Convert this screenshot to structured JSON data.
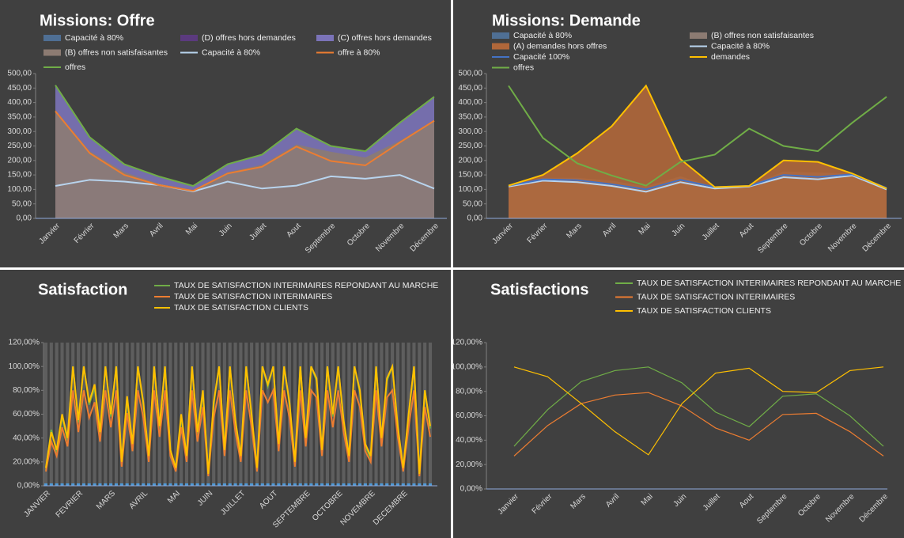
{
  "chart_data": [
    {
      "type": "combo",
      "title": "Missions: Offre",
      "categories": [
        "Janvier",
        "Février",
        "Mars",
        "Avril",
        "Mai",
        "Juin",
        "Juillet",
        "Aout",
        "Septembre",
        "Octobre",
        "Novembre",
        "Décembre"
      ],
      "ylim": [
        0,
        500
      ],
      "yticks": [
        {
          "value": 0,
          "label": "0,00"
        },
        {
          "value": 50,
          "label": "50,00"
        },
        {
          "value": 100,
          "label": "100,00"
        },
        {
          "value": 150,
          "label": "150,00"
        },
        {
          "value": 200,
          "label": "200,00"
        },
        {
          "value": 250,
          "label": "250,00"
        },
        {
          "value": 300,
          "label": "300,00"
        },
        {
          "value": 350,
          "label": "350,00"
        },
        {
          "value": 400,
          "label": "400,00"
        },
        {
          "value": 450,
          "label": "450,00"
        },
        {
          "value": 500,
          "label": "500,00"
        }
      ],
      "series": [
        {
          "name": "Capacité à 80%",
          "style": "area",
          "color": "#4f6f94",
          "values": [
            112,
            133,
            127,
            115,
            93,
            127,
            103,
            113,
            145,
            137,
            150,
            103
          ]
        },
        {
          "name": "(D) offres hors demandes",
          "style": "area",
          "color": "#5b3a7e",
          "values": [
            370,
            225,
            150,
            115,
            95,
            155,
            178,
            248,
            198,
            183,
            262,
            337
          ]
        },
        {
          "name": "(C) offres hors demandes",
          "style": "area",
          "color": "#7b73b8",
          "values": [
            460,
            280,
            187,
            145,
            112,
            187,
            220,
            310,
            250,
            232,
            330,
            420
          ]
        },
        {
          "name": "(B) offres non satisfaisantes",
          "style": "area",
          "color": "#8c7b72",
          "values": [
            375,
            232,
            160,
            120,
            98,
            160,
            185,
            255,
            230,
            210,
            268,
            340
          ]
        },
        {
          "name": "Capacité à 80%",
          "style": "line",
          "color": "#b8d4ee",
          "values": [
            112,
            133,
            127,
            115,
            93,
            127,
            103,
            113,
            145,
            137,
            150,
            103
          ]
        },
        {
          "name": "offre à 80%",
          "style": "line",
          "color": "#ed7d31",
          "values": [
            370,
            225,
            150,
            115,
            95,
            155,
            178,
            248,
            198,
            183,
            262,
            337
          ]
        },
        {
          "name": "offres",
          "style": "line",
          "color": "#70ad47",
          "values": [
            460,
            280,
            187,
            145,
            112,
            187,
            220,
            310,
            250,
            232,
            330,
            420
          ]
        }
      ]
    },
    {
      "type": "combo",
      "title": "Missions: Demande",
      "categories": [
        "Janvier",
        "Février",
        "Mars",
        "Avril",
        "Mai",
        "Juin",
        "Juillet",
        "Aout",
        "Septembre",
        "Octobre",
        "Novembre",
        "Décembre"
      ],
      "ylim": [
        0,
        500
      ],
      "yticks": [
        {
          "value": 0,
          "label": "0,00"
        },
        {
          "value": 50,
          "label": "50,00"
        },
        {
          "value": 100,
          "label": "100,00"
        },
        {
          "value": 150,
          "label": "150,00"
        },
        {
          "value": 200,
          "label": "200,00"
        },
        {
          "value": 250,
          "label": "250,00"
        },
        {
          "value": 300,
          "label": "300,00"
        },
        {
          "value": 350,
          "label": "350,00"
        },
        {
          "value": 400,
          "label": "400,00"
        },
        {
          "value": 450,
          "label": "450,00"
        },
        {
          "value": 500,
          "label": "500,00"
        }
      ],
      "series": [
        {
          "name": "Capacité à 80%",
          "style": "area",
          "color": "#4f6f94",
          "values": [
            110,
            130,
            125,
            112,
            92,
            125,
            103,
            110,
            142,
            135,
            148,
            100
          ]
        },
        {
          "name": "(B) offres non satisfaisantes",
          "style": "area",
          "color": "#8c7b72",
          "values": [
            113,
            140,
            140,
            130,
            110,
            145,
            108,
            112,
            162,
            158,
            155,
            103
          ]
        },
        {
          "name": "(A) demandes hors offres",
          "style": "area",
          "color": "#b0673a",
          "values": [
            113,
            150,
            225,
            318,
            458,
            205,
            108,
            112,
            200,
            195,
            155,
            103
          ]
        },
        {
          "name": "Capacité à 80%",
          "style": "line",
          "color": "#b8d4ee",
          "values": [
            110,
            130,
            125,
            112,
            92,
            125,
            103,
            110,
            142,
            135,
            148,
            100
          ]
        },
        {
          "name": "Capacité 100%",
          "style": "line",
          "color": "#4472c4",
          "values": [
            113,
            135,
            132,
            118,
            100,
            133,
            108,
            112,
            150,
            143,
            152,
            105
          ]
        },
        {
          "name": "demandes",
          "style": "line",
          "color": "#ffc000",
          "values": [
            113,
            150,
            225,
            318,
            458,
            205,
            108,
            112,
            200,
            195,
            155,
            103
          ]
        },
        {
          "name": "offres",
          "style": "line",
          "color": "#70ad47",
          "values": [
            458,
            278,
            190,
            148,
            113,
            195,
            220,
            310,
            250,
            232,
            330,
            420
          ]
        }
      ]
    },
    {
      "type": "combo",
      "title": "Satisfaction",
      "categories": [
        "JANVIER",
        null,
        null,
        null,
        null,
        null,
        "FEVRIER",
        null,
        null,
        null,
        null,
        null,
        "MARS",
        null,
        null,
        null,
        null,
        null,
        "AVRIL",
        null,
        null,
        null,
        null,
        null,
        "MAI",
        null,
        null,
        null,
        null,
        null,
        "JUIN",
        null,
        null,
        null,
        null,
        null,
        "JUILLET",
        null,
        null,
        null,
        null,
        null,
        "AOUT",
        null,
        null,
        null,
        null,
        null,
        "SEPTEMBRE",
        null,
        null,
        null,
        null,
        null,
        "OCTOBRE",
        null,
        null,
        null,
        null,
        null,
        "NOVEMBRE",
        null,
        null,
        null,
        null,
        null,
        "DECEMBRE",
        null,
        null,
        null,
        null,
        null
      ],
      "ylim": [
        0,
        120
      ],
      "yticks": [
        {
          "value": 0,
          "label": "0,00%"
        },
        {
          "value": 20,
          "label": "20,00%"
        },
        {
          "value": 40,
          "label": "40,00%"
        },
        {
          "value": 60,
          "label": "60,00%"
        },
        {
          "value": 80,
          "label": "80,00%"
        },
        {
          "value": 100,
          "label": "100,00%"
        },
        {
          "value": 120,
          "label": "120,00%"
        }
      ],
      "series": [
        {
          "style": "bar",
          "color": "#5e5e5e",
          "values": [
            120,
            120,
            120,
            120,
            120,
            120,
            120,
            120,
            120,
            120,
            120,
            120,
            120,
            120,
            120,
            120,
            120,
            120,
            120,
            120,
            120,
            120,
            120,
            120,
            120,
            120,
            120,
            120,
            120,
            120,
            120,
            120,
            120,
            120,
            120,
            120,
            120,
            120,
            120,
            120,
            120,
            120,
            120,
            120,
            120,
            120,
            120,
            120,
            120,
            120,
            120,
            120,
            120,
            120,
            120,
            120,
            120,
            120,
            120,
            120,
            120,
            120,
            120,
            120,
            120,
            120,
            120,
            120,
            120,
            120,
            120,
            120
          ]
        },
        {
          "style": "bar",
          "color": "#4f9ad8",
          "values": [
            2,
            2,
            2,
            2,
            2,
            2,
            2,
            2,
            2,
            2,
            2,
            2,
            2,
            2,
            2,
            2,
            2,
            2,
            2,
            2,
            2,
            2,
            2,
            2,
            2,
            2,
            2,
            2,
            2,
            2,
            2,
            2,
            2,
            2,
            2,
            2,
            2,
            2,
            2,
            2,
            2,
            2,
            2,
            2,
            2,
            2,
            2,
            2,
            2,
            2,
            2,
            2,
            2,
            2,
            2,
            2,
            2,
            2,
            2,
            2,
            2,
            2,
            2,
            2,
            2,
            2,
            2,
            2,
            2,
            2,
            2,
            2
          ]
        },
        {
          "name": "TAUX DE SATISFACTION INTERIMAIRES REPONDANT AU MARCHE",
          "style": "line",
          "color": "#70ad47",
          "values": [
            13,
            47,
            28,
            58,
            38,
            100,
            53,
            100,
            68,
            82,
            43,
            100,
            58,
            100,
            18,
            73,
            33,
            100,
            68,
            23,
            100,
            48,
            100,
            28,
            13,
            58,
            23,
            100,
            43,
            78,
            9,
            68,
            100,
            28,
            100,
            53,
            23,
            100,
            58,
            13,
            100,
            83,
            100,
            33,
            100,
            68,
            18,
            100,
            38,
            100,
            88,
            28,
            100,
            58,
            100,
            53,
            23,
            100,
            78,
            33,
            23,
            100,
            38,
            88,
            100,
            48,
            13,
            58,
            100,
            9,
            80,
            48
          ]
        },
        {
          "name": "TAUX DE SATISFACTION INTERIMAIRES",
          "style": "line",
          "color": "#ed7d31",
          "values": [
            12,
            37,
            25,
            49,
            33,
            80,
            45,
            80,
            57,
            70,
            37,
            80,
            49,
            80,
            16,
            61,
            29,
            80,
            57,
            20,
            80,
            41,
            80,
            25,
            12,
            49,
            20,
            80,
            37,
            66,
            8,
            57,
            80,
            25,
            80,
            45,
            20,
            80,
            49,
            12,
            80,
            70,
            80,
            29,
            80,
            57,
            16,
            80,
            33,
            80,
            74,
            25,
            80,
            49,
            80,
            45,
            20,
            80,
            66,
            29,
            20,
            80,
            33,
            74,
            80,
            41,
            12,
            49,
            80,
            8,
            66,
            41
          ]
        },
        {
          "name": "TAUX DE SATISFACTION CLIENTS",
          "style": "line",
          "color": "#ffc000",
          "values": [
            15,
            45,
            30,
            60,
            40,
            100,
            55,
            100,
            70,
            85,
            45,
            100,
            60,
            100,
            20,
            75,
            35,
            100,
            70,
            25,
            100,
            50,
            100,
            30,
            15,
            60,
            25,
            100,
            45,
            80,
            10,
            70,
            100,
            30,
            100,
            55,
            25,
            100,
            60,
            15,
            100,
            85,
            100,
            35,
            100,
            70,
            20,
            100,
            40,
            100,
            90,
            30,
            100,
            60,
            100,
            55,
            25,
            100,
            80,
            35,
            25,
            100,
            40,
            90,
            100,
            50,
            15,
            60,
            100,
            10,
            80,
            50
          ]
        }
      ]
    },
    {
      "type": "line",
      "title": "Satisfactions",
      "categories": [
        "Janvier",
        "Février",
        "Mars",
        "Avril",
        "Mai",
        "Juin",
        "Juillet",
        "Aout",
        "Septembre",
        "Octobre",
        "Novembre",
        "Décembre"
      ],
      "ylim": [
        0,
        120
      ],
      "yticks": [
        {
          "value": 0,
          "label": "0,00%"
        },
        {
          "value": 20,
          "label": "20,00%"
        },
        {
          "value": 40,
          "label": "40,00%"
        },
        {
          "value": 60,
          "label": "60,00%"
        },
        {
          "value": 80,
          "label": "80,00%"
        },
        {
          "value": 100,
          "label": "100,00%"
        },
        {
          "value": 120,
          "label": "120,00%"
        }
      ],
      "series": [
        {
          "name": "TAUX DE SATISFACTION INTERIMAIRES REPONDANT AU MARCHE",
          "style": "line",
          "color": "#70ad47",
          "values": [
            35,
            65,
            88,
            97,
            100,
            87,
            63,
            51,
            76,
            78,
            60,
            35
          ]
        },
        {
          "name": "TAUX DE SATISFACTION INTERIMAIRES",
          "style": "line",
          "color": "#ed7d31",
          "values": [
            27,
            52,
            70,
            77,
            79,
            68,
            50,
            40,
            61,
            62,
            47,
            27
          ]
        },
        {
          "name": "TAUX DE SATISFACTION CLIENTS",
          "style": "line",
          "color": "#ffc000",
          "values": [
            100,
            92,
            70,
            47,
            28,
            70,
            95,
            99,
            80,
            79,
            97,
            100
          ]
        }
      ]
    }
  ]
}
